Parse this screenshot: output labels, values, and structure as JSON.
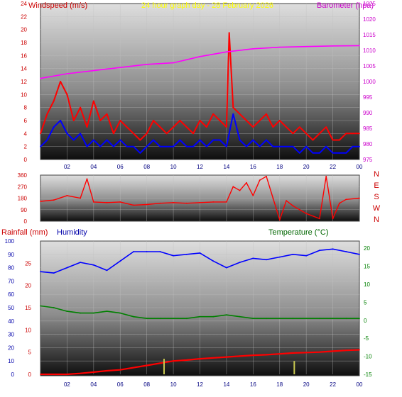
{
  "chart_data": [
    {
      "type": "line",
      "title": "24 hour graph day - 28 February 2026",
      "left_label": "Windspeed (m/s)",
      "right_label": "Barometer (hpa)",
      "x_ticks": [
        "02",
        "04",
        "06",
        "08",
        "10",
        "12",
        "14",
        "16",
        "18",
        "20",
        "22",
        "00"
      ],
      "left_ticks": [
        "0",
        "2",
        "4",
        "6",
        "8",
        "10",
        "12",
        "14",
        "16",
        "18",
        "20",
        "22",
        "24"
      ],
      "right_ticks": [
        "975",
        "980",
        "985",
        "990",
        "995",
        "1000",
        "1005",
        "1010",
        "1015",
        "1020",
        "1025"
      ],
      "ylim_left": [
        0,
        24
      ],
      "ylim_right": [
        975,
        1025
      ],
      "grid": true,
      "series": [
        {
          "name": "Windspeed (m/s)",
          "axis": "left",
          "color": "#ff0000",
          "x": [
            0,
            0.5,
            1,
            1.5,
            2,
            2.5,
            3,
            3.5,
            4,
            4.5,
            5,
            5.5,
            6,
            6.5,
            7,
            7.5,
            8,
            8.5,
            9,
            9.5,
            10,
            10.5,
            11,
            11.5,
            12,
            12.5,
            13,
            13.5,
            14,
            14.2,
            14.5,
            15,
            15.5,
            16,
            16.5,
            17,
            17.5,
            18,
            18.5,
            19,
            19.5,
            20,
            20.5,
            21,
            21.5,
            22,
            22.5,
            23,
            23.5,
            24
          ],
          "values": [
            4,
            7,
            9,
            12,
            10,
            6,
            8,
            5,
            9,
            6,
            7,
            4,
            6,
            5,
            4,
            3,
            4,
            6,
            5,
            4,
            5,
            6,
            5,
            4,
            6,
            5,
            7,
            6,
            5,
            19.5,
            8,
            7,
            6,
            5,
            6,
            7,
            5,
            6,
            5,
            4,
            5,
            4,
            3,
            4,
            5,
            3,
            3,
            4,
            4,
            4
          ]
        },
        {
          "name": "Wind gust",
          "axis": "left",
          "color": "#0000ff",
          "x": [
            0,
            0.5,
            1,
            1.5,
            2,
            2.5,
            3,
            3.5,
            4,
            4.5,
            5,
            5.5,
            6,
            6.5,
            7,
            7.5,
            8,
            8.5,
            9,
            9.5,
            10,
            10.5,
            11,
            11.5,
            12,
            12.5,
            13,
            13.5,
            14,
            14.5,
            15,
            15.5,
            16,
            16.5,
            17,
            17.5,
            18,
            18.5,
            19,
            19.5,
            20,
            20.5,
            21,
            21.5,
            22,
            22.5,
            23,
            23.5,
            24
          ],
          "values": [
            2,
            3,
            5,
            6,
            4,
            3,
            4,
            2,
            3,
            2,
            3,
            2,
            3,
            2,
            2,
            1,
            2,
            3,
            2,
            2,
            2,
            3,
            2,
            2,
            3,
            2,
            3,
            3,
            2,
            7,
            3,
            2,
            3,
            2,
            3,
            2,
            2,
            2,
            2,
            1,
            2,
            1,
            1,
            2,
            1,
            1,
            1,
            2,
            2
          ]
        },
        {
          "name": "Barometer (hpa)",
          "axis": "right",
          "color": "#ff00ff",
          "x": [
            0,
            2,
            4,
            6,
            8,
            10,
            12,
            14,
            16,
            18,
            20,
            22,
            24
          ],
          "values": [
            1001,
            1002.5,
            1003.5,
            1004.5,
            1005.5,
            1006,
            1008,
            1009.5,
            1010.5,
            1011,
            1011.2,
            1011.4,
            1011.5
          ]
        }
      ]
    },
    {
      "type": "line",
      "left_ticks": [
        "0",
        "90",
        "180",
        "270",
        "360"
      ],
      "right_ticks": [
        "N",
        "W",
        "S",
        "E",
        "N"
      ],
      "x_ticks": [],
      "ylim": [
        0,
        360
      ],
      "grid": true,
      "series": [
        {
          "name": "Wind direction",
          "axis": "left",
          "color": "#ff0000",
          "x": [
            0,
            1,
            2,
            3,
            3.5,
            4,
            5,
            6,
            7,
            8,
            9,
            10,
            11,
            12,
            13,
            14,
            14.5,
            15,
            15.5,
            16,
            16.5,
            17,
            17.5,
            18,
            18.5,
            19,
            19.5,
            20,
            21,
            21.5,
            22,
            22.5,
            23,
            24
          ],
          "values": [
            155,
            165,
            200,
            180,
            330,
            150,
            145,
            150,
            125,
            130,
            140,
            145,
            140,
            145,
            150,
            150,
            270,
            240,
            300,
            200,
            320,
            350,
            180,
            10,
            160,
            120,
            90,
            60,
            20,
            350,
            20,
            140,
            170,
            180
          ]
        }
      ]
    },
    {
      "type": "line",
      "left_label": "Rainfall (mm)",
      "left_ticks": [
        "0",
        "5",
        "10",
        "15",
        "20",
        "25"
      ],
      "humidity_label": "Humidity",
      "humidity_ticks": [
        "0",
        "10",
        "20",
        "30",
        "40",
        "50",
        "60",
        "70",
        "80",
        "90",
        "100"
      ],
      "right_label": "Temperature (°C)",
      "right_ticks": [
        "-15",
        "-10",
        "-5",
        "0",
        "5",
        "10",
        "15",
        "20"
      ],
      "x_ticks": [
        "02",
        "04",
        "06",
        "08",
        "10",
        "12",
        "14",
        "16",
        "18",
        "20",
        "22",
        "00"
      ],
      "ylim_rain": [
        0,
        30
      ],
      "ylim_humidity": [
        0,
        100
      ],
      "ylim_temp": [
        -15,
        22
      ],
      "grid": true,
      "series": [
        {
          "name": "Humidity",
          "axis": "humidity",
          "color": "#0000ff",
          "x": [
            0,
            1,
            2,
            3,
            4,
            5,
            6,
            7,
            8,
            9,
            10,
            11,
            12,
            13,
            14,
            15,
            16,
            17,
            18,
            19,
            20,
            21,
            22,
            23,
            24
          ],
          "values": [
            77,
            76,
            80,
            84,
            82,
            78,
            85,
            92,
            92,
            92,
            89,
            90,
            91,
            85,
            80,
            84,
            87,
            86,
            88,
            90,
            89,
            93,
            94,
            92,
            90
          ]
        },
        {
          "name": "Temperature (°C)",
          "axis": "temp",
          "color": "#008000",
          "x": [
            0,
            1,
            2,
            3,
            4,
            5,
            6,
            7,
            8,
            9,
            10,
            11,
            12,
            13,
            14,
            15,
            16,
            17,
            18,
            19,
            20,
            21,
            22,
            23,
            24
          ],
          "values": [
            4,
            3.5,
            2.5,
            2,
            2,
            2.5,
            2,
            1,
            0.5,
            0.5,
            0.5,
            0.5,
            1,
            1,
            1.5,
            1,
            0.5,
            0.5,
            0.5,
            0.5,
            0.5,
            0.5,
            0.5,
            0.5,
            0.5
          ]
        },
        {
          "name": "Rainfall (mm)",
          "axis": "rain",
          "color": "#ff0000",
          "x": [
            0,
            1,
            2,
            3,
            4,
            5,
            6,
            7,
            8,
            9,
            10,
            11,
            12,
            13,
            14,
            15,
            16,
            17,
            18,
            19,
            20,
            21,
            22,
            23,
            24
          ],
          "values": [
            0,
            0,
            0,
            0.2,
            0.5,
            0.8,
            1.0,
            1.5,
            2.0,
            2.5,
            3.0,
            3.2,
            3.5,
            3.7,
            3.9,
            4.1,
            4.3,
            4.4,
            4.6,
            4.8,
            4.9,
            5.0,
            5.2,
            5.4,
            5.5
          ]
        },
        {
          "name": "Rain rate",
          "axis": "rain",
          "color": "#c8c850",
          "style": "bars",
          "x": [
            9.3,
            19.1
          ],
          "values": [
            3.5,
            3.0
          ]
        }
      ]
    }
  ]
}
